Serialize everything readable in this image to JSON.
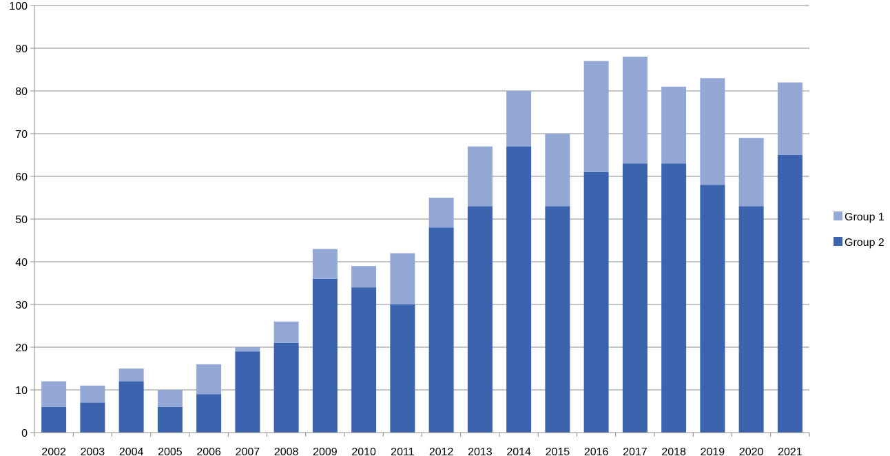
{
  "chart_data": {
    "type": "bar",
    "stacked": true,
    "title": "",
    "xlabel": "",
    "ylabel": "",
    "ylim": [
      0,
      100
    ],
    "yticks": [
      0,
      10,
      20,
      30,
      40,
      50,
      60,
      70,
      80,
      90,
      100
    ],
    "grid": true,
    "legend": "right",
    "categories": [
      "2002",
      "2003",
      "2004",
      "2005",
      "2006",
      "2007",
      "2008",
      "2009",
      "2010",
      "2011",
      "2012",
      "2013",
      "2014",
      "2015",
      "2016",
      "2017",
      "2018",
      "2019",
      "2020",
      "2021"
    ],
    "series": [
      {
        "name": "Group 2",
        "color": "#3c64ae",
        "values": [
          6,
          7,
          12,
          6,
          9,
          19,
          21,
          36,
          34,
          30,
          48,
          53,
          67,
          53,
          61,
          63,
          63,
          58,
          53,
          65
        ]
      },
      {
        "name": "Group 1",
        "color": "#94a8d6",
        "values": [
          6,
          4,
          3,
          4,
          7,
          1,
          5,
          7,
          5,
          12,
          7,
          14,
          13,
          17,
          26,
          25,
          18,
          25,
          16,
          17
        ]
      }
    ],
    "legend_order": [
      "Group 1",
      "Group 2"
    ]
  }
}
